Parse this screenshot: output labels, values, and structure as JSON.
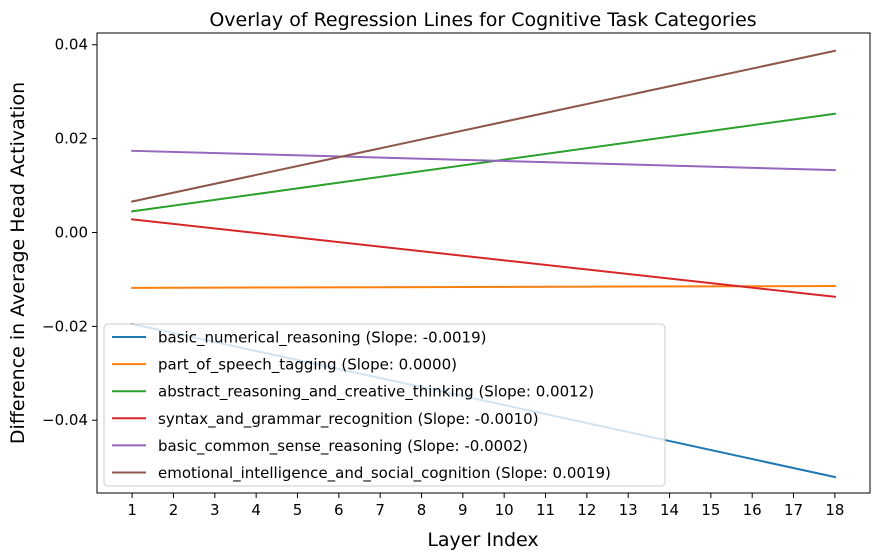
{
  "chart_data": {
    "type": "line",
    "title": "Overlay of Regression Lines for Cognitive Task Categories",
    "xlabel": "Layer Index",
    "ylabel": "Difference in Average Head Activation",
    "x": [
      1,
      18
    ],
    "xticks": [
      "1",
      "2",
      "3",
      "4",
      "5",
      "6",
      "7",
      "8",
      "9",
      "10",
      "11",
      "12",
      "13",
      "14",
      "15",
      "16",
      "17",
      "18"
    ],
    "yticks": [
      "−0.04",
      "−0.02",
      "0.00",
      "0.02",
      "0.04"
    ],
    "ytick_values": [
      -0.04,
      -0.02,
      0.0,
      0.02,
      0.04
    ],
    "xlim": [
      0.15,
      18.85
    ],
    "ylim": [
      -0.0555,
      0.0425
    ],
    "grid": false,
    "legend_position": "lower-left",
    "series": [
      {
        "name": "basic_numerical_reasoning (Slope: -0.0019)",
        "color": "#1f77b4",
        "values": [
          -0.0195,
          -0.0521
        ]
      },
      {
        "name": "part_of_speech_tagging (Slope: 0.0000)",
        "color": "#ff7f0e",
        "values": [
          -0.0118,
          -0.0114
        ]
      },
      {
        "name": "abstract_reasoning_and_creative_thinking (Slope: 0.0012)",
        "color": "#2ca02c",
        "values": [
          0.0045,
          0.0253
        ]
      },
      {
        "name": "syntax_and_grammar_recognition (Slope: -0.0010)",
        "color": "#d62728",
        "values": [
          0.0028,
          -0.0137
        ]
      },
      {
        "name": "basic_common_sense_reasoning (Slope: -0.0002)",
        "color": "#9467bd",
        "values": [
          0.0174,
          0.0133
        ]
      },
      {
        "name": "emotional_intelligence_and_social_cognition (Slope: 0.0019)",
        "color": "#8c564b",
        "values": [
          0.0066,
          0.0387
        ]
      }
    ]
  }
}
